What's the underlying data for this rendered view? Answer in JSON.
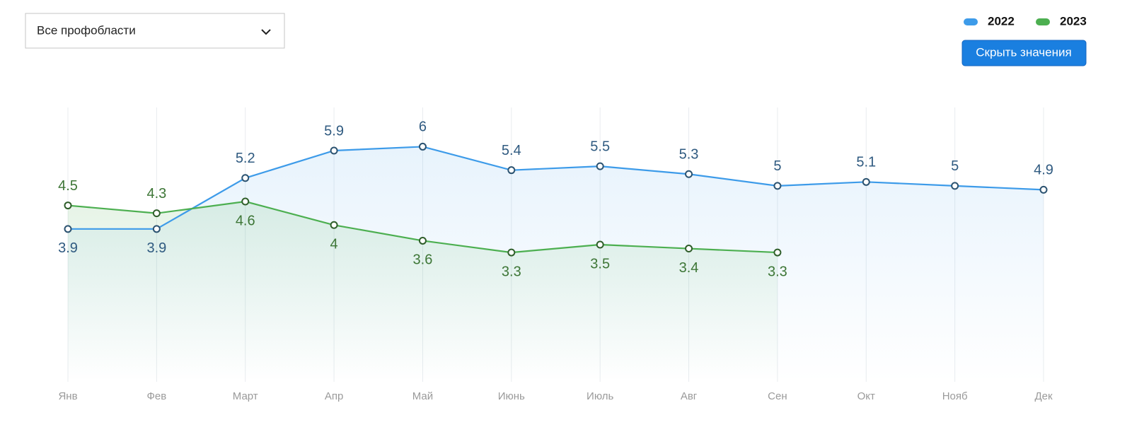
{
  "dropdown": {
    "label": "Все профобласти"
  },
  "button": {
    "label": "Скрыть значения"
  },
  "chart_data": {
    "type": "line",
    "categories": [
      "Янв",
      "Фев",
      "Март",
      "Апр",
      "Май",
      "Июнь",
      "Июль",
      "Авг",
      "Сен",
      "Окт",
      "Нояб",
      "Дек"
    ],
    "series": [
      {
        "name": "2022",
        "color": "#3d9be9",
        "label_color": "#2f5a80",
        "values": [
          3.9,
          3.9,
          5.2,
          5.9,
          6,
          5.4,
          5.5,
          5.3,
          5,
          5.1,
          5,
          4.9
        ]
      },
      {
        "name": "2023",
        "color": "#4caf50",
        "label_color": "#3d7636",
        "values": [
          4.5,
          4.3,
          4.6,
          4,
          3.6,
          3.3,
          3.5,
          3.4,
          3.3,
          null,
          null,
          null
        ]
      }
    ],
    "ylim": [
      0,
      7
    ],
    "grid": true,
    "legend": "top-right"
  }
}
